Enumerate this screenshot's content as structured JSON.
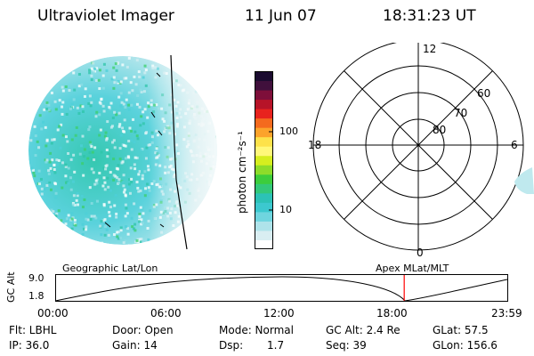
{
  "header": {
    "instrument": "Ultraviolet Imager",
    "date": "11 Jun 07",
    "time": "18:31:23 UT"
  },
  "colorbar": {
    "label": "photon cm⁻²s⁻¹",
    "ticks": [
      "100",
      "10"
    ],
    "colors": [
      "#ffffff",
      "#d9eef2",
      "#aee3ea",
      "#6fd5df",
      "#3cc8cf",
      "#2cc2b6",
      "#33c879",
      "#3ccd3c",
      "#8ddc2a",
      "#d6ee1f",
      "#fff87a",
      "#fde24a",
      "#fca32b",
      "#f46a1e",
      "#e8231e",
      "#b71328",
      "#7e0f3a",
      "#40103c",
      "#1b0b30"
    ]
  },
  "polar": {
    "mlt_labels": {
      "top": "12",
      "bottom": "0",
      "left": "18",
      "right": "6"
    },
    "lat_labels": [
      "80",
      "70",
      "60"
    ]
  },
  "orbit_panel": {
    "ylabel": "GC Alt",
    "ymax": "9.0",
    "ymin": "1.8",
    "left_label": "Geographic Lat/Lon",
    "right_label": "Apex MLat/MLT",
    "time_ticks": [
      "00:00",
      "06:00",
      "12:00",
      "18:00",
      "23:59"
    ],
    "current_time_fraction": 0.772,
    "marker_color": "#ff0000"
  },
  "status": {
    "filter": "Flt: LBHL",
    "ip": "IP: 36.0",
    "door": "Door: Open",
    "gain": "Gain: 14",
    "mode": "Mode: Normal",
    "dsp_label": "Dsp:",
    "dsp_value": "1.7",
    "gc_alt": "GC Alt: 2.4 Re",
    "seq": "Seq: 39",
    "glat": "GLat:  57.5",
    "glon": "GLon: 156.6"
  }
}
